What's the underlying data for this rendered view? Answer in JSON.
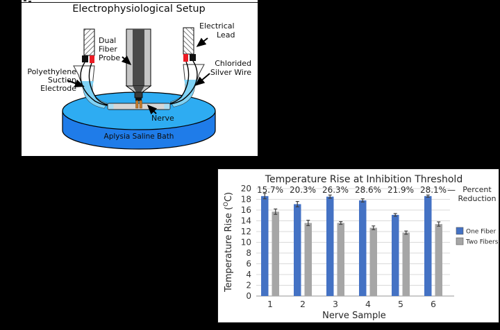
{
  "figure": {
    "background": "#000000"
  },
  "diagram": {
    "title": "Electrophysiological Setup",
    "labels": {
      "dual_fiber_probe": [
        "Dual",
        "Fiber",
        "Probe"
      ],
      "electrical_lead": [
        "Electrical",
        "Lead"
      ],
      "chlorided_silver_wire": [
        "Chlorided",
        "Silver Wire"
      ],
      "polyethylene_suction_electrode": [
        "Polyethylene",
        "Suction",
        "Electrode"
      ],
      "nerve": "Nerve",
      "bath": "Aplysia Saline Bath"
    },
    "colors": {
      "bath_top": "#2EACF2",
      "bath_side": "#1F7CE9",
      "tube_liquid": "#7FD2F5",
      "fiber_orange": "#C27B2C",
      "connector_red": "#EC1C24",
      "probe_dark": "#4A4A4A",
      "probe_light": "#C6C6C6"
    }
  },
  "chart_data": {
    "type": "bar",
    "title": "Temperature Rise at Inhibition Threshold",
    "xlabel": "Nerve Sample",
    "ylabel": "Temperature Rise (°C)",
    "ylabel_parts": [
      "Temperature Rise (",
      "O",
      "C)"
    ],
    "categories": [
      "1",
      "2",
      "3",
      "4",
      "5",
      "6"
    ],
    "series": [
      {
        "name": "One Fiber",
        "color": "#4472C4",
        "values": [
          18.6,
          17.1,
          18.5,
          17.8,
          15.1,
          18.6
        ],
        "errors": [
          0.5,
          0.5,
          0.3,
          0.3,
          0.25,
          0.2
        ]
      },
      {
        "name": "Two Fibers",
        "color": "#A6A6A6",
        "values": [
          15.7,
          13.6,
          13.6,
          12.7,
          11.8,
          13.4
        ],
        "errors": [
          0.5,
          0.5,
          0.25,
          0.35,
          0.3,
          0.4
        ]
      }
    ],
    "percent_reduction_labels": [
      "15.7%",
      "20.3%",
      "26.3%",
      "28.6%",
      "21.9%",
      "28.1%"
    ],
    "annotation": {
      "dash": "—",
      "lines": [
        "Percent",
        "Reduction"
      ]
    },
    "ylim": [
      0,
      20
    ],
    "yticks": [
      0,
      2,
      4,
      6,
      8,
      10,
      12,
      14,
      16,
      18,
      20
    ],
    "grid": true,
    "legend_position": "right"
  }
}
